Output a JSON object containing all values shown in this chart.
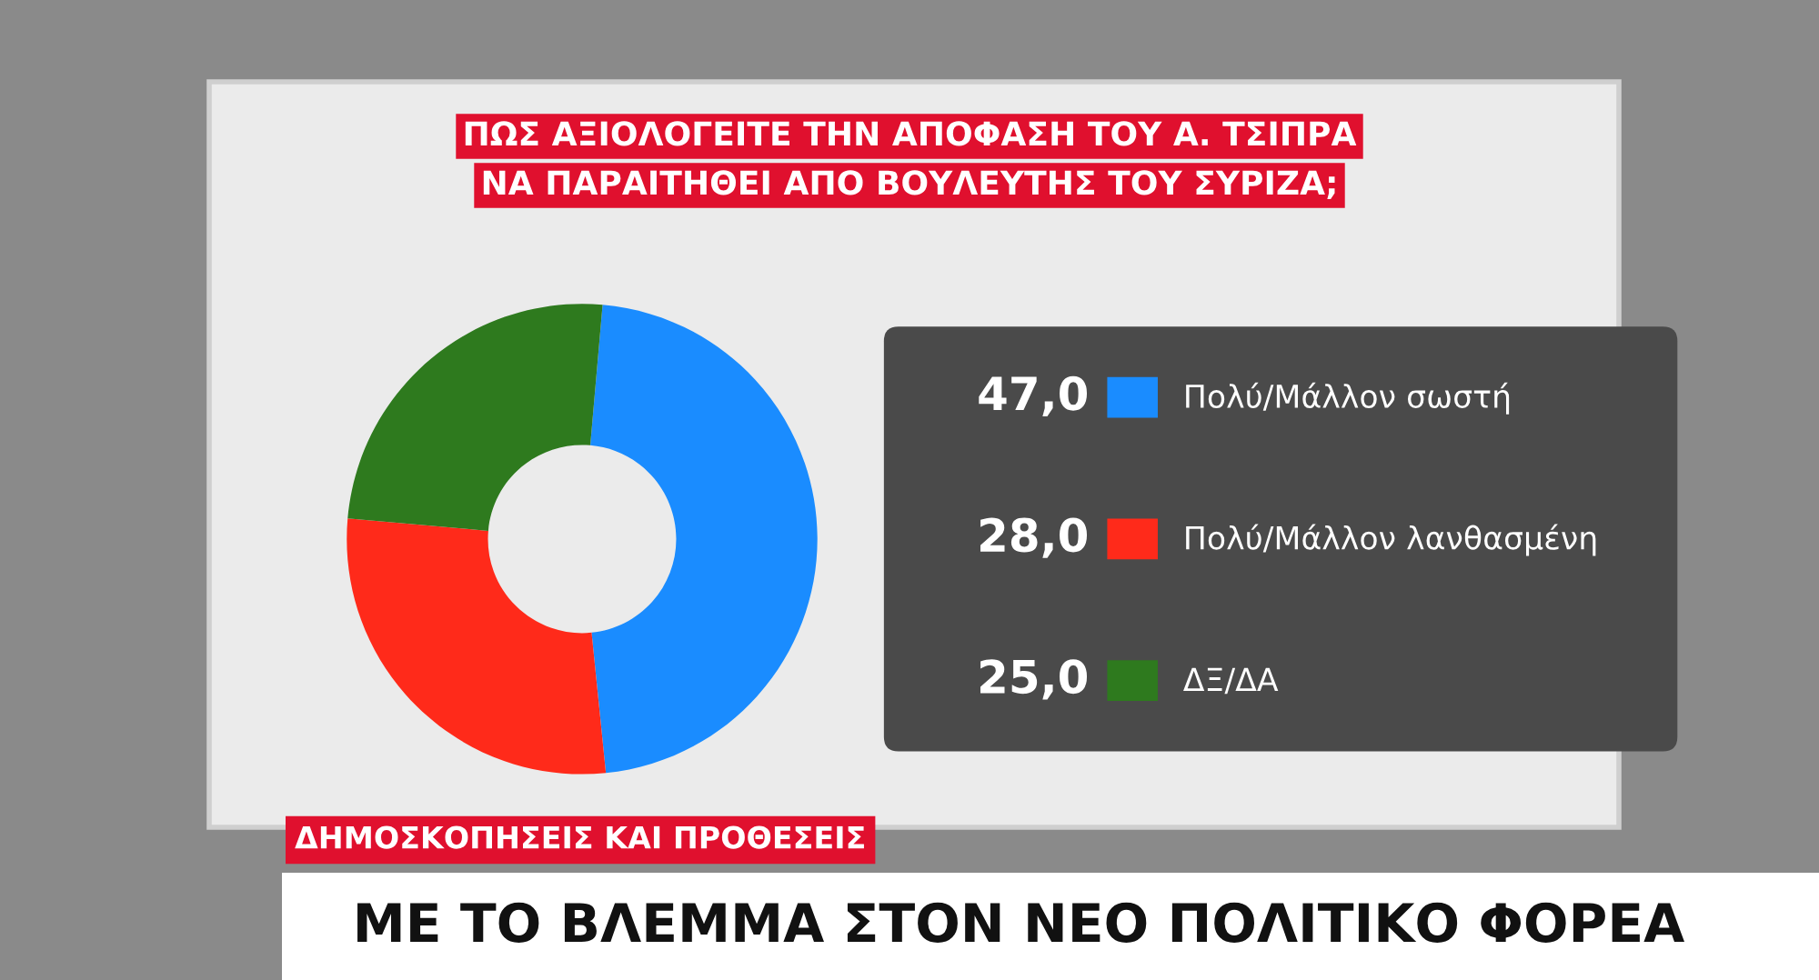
{
  "chart_data": {
    "type": "donut",
    "title": "ΠΩΣ ΑΞΙΟΛΟΓΕΙΤΕ ΤΗΝ ΑΠΟΦΑΣΗ ΤΟΥ Α. ΤΣΙΠΡΑ\nΝΑ ΠΑΡΑΙΤΗΘΕΙ ΑΠΟ ΒΟΥΛΕΥΤΗΣ ΤΟΥ ΣΥΡΙΖΑ;",
    "categories": [
      "Πολύ/Μάλλον σωστή",
      "Πολύ/Μάλλον λανθασμένη",
      "ΔΞ/ΔΑ"
    ],
    "values": [
      47,
      28,
      25
    ],
    "value_labels": [
      "47,0",
      "28,0",
      "25,0"
    ],
    "colors": [
      "#1a8cff",
      "#ff2a1a",
      "#2e7a1e"
    ],
    "legend": "right",
    "annotations": [
      "ΔΗΜΟΣΚΟΠΗΣΕΙΣ ΚΑΙ ΠΡΟΘΕΣΕΙΣ",
      "ΜΕ ΤΟ ΒΛΕΜΜΑ ΣΤΟΝ ΝΕΟ ΠΟΛΙΤΙΚΟ ΦΟΡΕΑ"
    ]
  }
}
